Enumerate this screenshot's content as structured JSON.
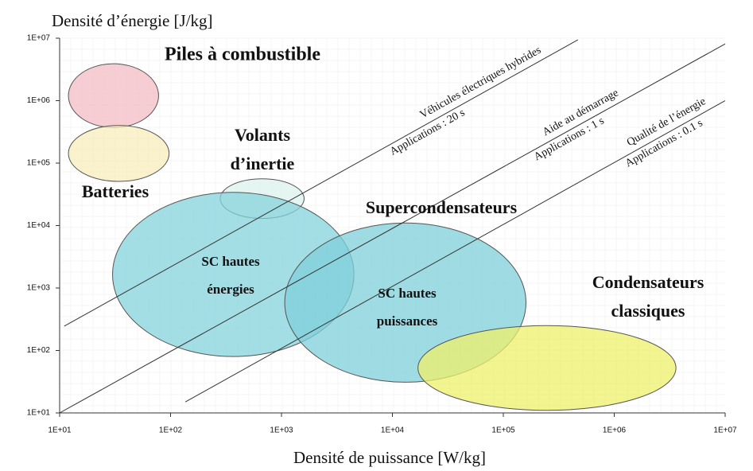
{
  "chart_data": {
    "type": "ragone",
    "title": "Densité d’énergie [J/kg]",
    "x_label": "Densité de puissance [W/kg]",
    "x_log": true,
    "y_log": true,
    "xlim": [
      10,
      10000000
    ],
    "ylim": [
      10,
      10000000
    ],
    "xticks": [
      {
        "value": 10,
        "label": "1E+01"
      },
      {
        "value": 100,
        "label": "1E+02"
      },
      {
        "value": 1000,
        "label": "1E+03"
      },
      {
        "value": 10000,
        "label": "1E+04"
      },
      {
        "value": 100000,
        "label": "1E+05"
      },
      {
        "value": 1000000,
        "label": "1E+06"
      },
      {
        "value": 10000000,
        "label": "1E+07"
      }
    ],
    "yticks": [
      {
        "value": 10,
        "label": "1E+01"
      },
      {
        "value": 100,
        "label": "1E+02"
      },
      {
        "value": 1000,
        "label": "1E+03"
      },
      {
        "value": 10000,
        "label": "1E+04"
      },
      {
        "value": 100000,
        "label": "1E+05"
      },
      {
        "value": 1000000,
        "label": "1E+06"
      },
      {
        "value": 10000000,
        "label": "1E+07"
      }
    ],
    "regions": [
      {
        "label": [
          "Piles à combustible"
        ],
        "color": "#f2bcc4",
        "x": [
          12,
          78
        ],
        "y": [
          370000,
          3900000
        ]
      },
      {
        "label": [
          "Batteries"
        ],
        "color": "#f8eebb",
        "x": [
          12,
          97
        ],
        "y": [
          51000,
          400000
        ]
      },
      {
        "label": [
          "Volants",
          "d’inertie"
        ],
        "color": "#dcf3ee",
        "x": [
          280,
          1600
        ],
        "y": [
          13000,
          56000
        ]
      },
      {
        "label": [
          "SC hautes",
          "énergies"
        ],
        "color": "#86d3dc",
        "x": [
          30,
          4500
        ],
        "y": [
          80,
          34000
        ]
      },
      {
        "label": [
          "SC hautes",
          "puissances"
        ],
        "color": "#7fcfd9",
        "x": [
          1070,
          160000
        ],
        "y": [
          31,
          11000
        ]
      },
      {
        "label": [
          "Condensateurs",
          "classiques"
        ],
        "color": "#eef06a",
        "x": [
          17000,
          3600000
        ],
        "y": [
          11,
          250
        ]
      }
    ],
    "annotations": [
      "Supercondensateurs"
    ],
    "lines": [
      {
        "labels": [
          "Applications : 20 s",
          "Véhicules électriques hybrides"
        ],
        "x": [
          11,
          470000
        ],
        "y": [
          245,
          9400000
        ]
      },
      {
        "labels": [
          "Applications : 1 s",
          "Aide au démarrage"
        ],
        "x": [
          10,
          10000000
        ],
        "y": [
          10,
          8100000
        ]
      },
      {
        "labels": [
          "Applications : 0.1 s",
          "Qualité de l’énergie"
        ],
        "x": [
          136,
          10000000
        ],
        "y": [
          15,
          1000000
        ]
      }
    ]
  }
}
